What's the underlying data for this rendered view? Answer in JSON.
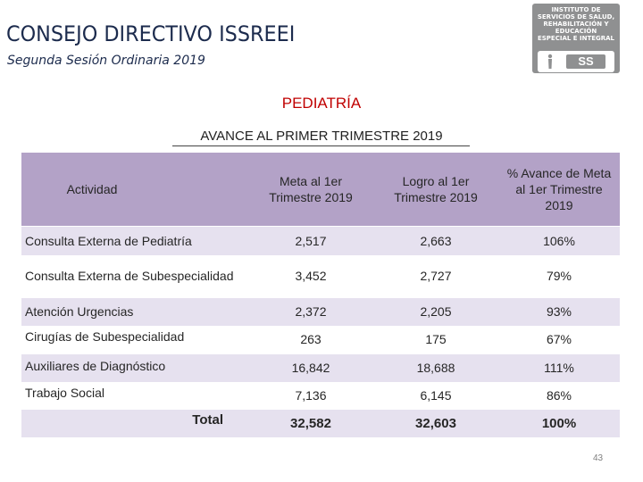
{
  "header": {
    "title": "CONSEJO DIRECTIVO ISSREEI",
    "subtitle": "Segunda Sesión Ordinaria 2019"
  },
  "logo": {
    "text": "INSTITUTO DE\nSERVICIOS DE SALUD,\nREHABILITACIÓN Y\nEDUCACIÓN\nESPECIAL E INTEGRAL",
    "badge": "SS"
  },
  "section_title": "PEDIATRÍA",
  "table_title": "AVANCE AL PRIMER TRIMESTRE 2019",
  "table": {
    "headers": [
      "Actividad",
      "Meta al 1er Trimestre 2019",
      "Logro al 1er Trimestre 2019",
      "% Avance de Meta al 1er Trimestre 2019"
    ],
    "rows": [
      {
        "actividad": "Consulta Externa de Pediatría",
        "meta": "2,517",
        "logro": "2,663",
        "avance": "106%"
      },
      {
        "actividad": "Consulta Externa de Subespecialidad",
        "meta": "3,452",
        "logro": "2,727",
        "avance": "79%"
      },
      {
        "actividad": "Atención Urgencias",
        "meta": "2,372",
        "logro": "2,205",
        "avance": "93%"
      },
      {
        "actividad": "Cirugías de Subespecialidad",
        "meta": "263",
        "logro": "175",
        "avance": "67%"
      },
      {
        "actividad": "Auxiliares de Diagnóstico",
        "meta": "16,842",
        "logro": "18,688",
        "avance": "111%"
      },
      {
        "actividad": "Trabajo Social",
        "meta": "7,136",
        "logro": "6,145",
        "avance": "86%"
      }
    ],
    "total": {
      "label": "Total",
      "meta": "32,582",
      "logro": "32,603",
      "avance": "100%"
    }
  },
  "page_number": "43",
  "colors": {
    "header_bg": "#b3a2c7",
    "row_shade": "#e6e1ef",
    "accent_red": "#c00000",
    "title_navy": "#1c2b4d"
  }
}
